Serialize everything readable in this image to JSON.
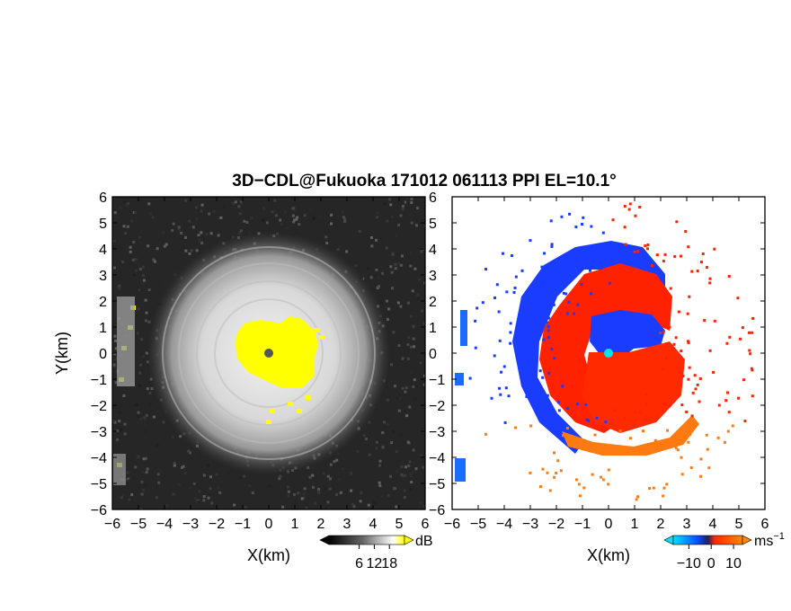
{
  "title": "3D−CDL@Fukuoka 171012 061113 PPI EL=10.1°",
  "chart_data": [
    {
      "type": "heatmap",
      "panel": "left",
      "xlabel": "X(km)",
      "ylabel": "Y(km)",
      "xlim": [
        -6,
        6
      ],
      "ylim": [
        -6,
        6
      ],
      "xticks": [
        -6,
        -5,
        -4,
        -3,
        -2,
        -1,
        0,
        1,
        2,
        3,
        4,
        5,
        6
      ],
      "yticks": [
        -6,
        -5,
        -4,
        -3,
        -2,
        -1,
        0,
        1,
        2,
        3,
        4,
        5,
        6
      ],
      "xtick_labels": [
        "−6",
        "−5",
        "−4",
        "−3",
        "−2",
        "−1",
        "0",
        "1",
        "2",
        "3",
        "4",
        "5",
        "6"
      ],
      "ytick_labels": [
        "−6",
        "−5",
        "−4",
        "−3",
        "−2",
        "−1",
        "0",
        "1",
        "2",
        "3",
        "4",
        "5",
        "6"
      ],
      "grid": false,
      "colorbar": {
        "unit": "dB",
        "ticks": [
          6,
          12,
          18
        ],
        "tick_labels": [
          "6",
          "12",
          "18"
        ],
        "colors": [
          "#000000",
          "#ffffff",
          "#ffff00"
        ]
      },
      "background_color": "#222222",
      "saturation_color": "#ffff00",
      "center_marker_color": "#555555"
    },
    {
      "type": "heatmap",
      "panel": "right",
      "xlabel": "X(km)",
      "ylabel": "",
      "xlim": [
        -6,
        6
      ],
      "ylim": [
        -6,
        6
      ],
      "xticks": [
        -6,
        -5,
        -4,
        -3,
        -2,
        -1,
        0,
        1,
        2,
        3,
        4,
        5,
        6
      ],
      "yticks": [
        -6,
        -5,
        -4,
        -3,
        -2,
        -1,
        0,
        1,
        2,
        3,
        4,
        5,
        6
      ],
      "xtick_labels": [
        "−6",
        "−5",
        "−4",
        "−3",
        "−2",
        "−1",
        "0",
        "1",
        "2",
        "3",
        "4",
        "5",
        "6"
      ],
      "ytick_labels": [
        "−6",
        "−5",
        "−4",
        "−3",
        "−2",
        "−1",
        "0",
        "1",
        "2",
        "3",
        "4",
        "5",
        "6"
      ],
      "grid": false,
      "colorbar": {
        "unit": "ms",
        "unit_exponent": "−1",
        "ticks": [
          -10,
          0,
          10
        ],
        "tick_labels": [
          "−10",
          "0",
          "10"
        ],
        "colors": [
          "#00e0ff",
          "#0050ff",
          "#ff2a00",
          "#ff8800"
        ]
      },
      "negative_color": "#1a3cff",
      "positive_color": "#ff2200",
      "far_positive_color": "#ff7a10",
      "center_marker_color": "#00e5e5"
    }
  ]
}
